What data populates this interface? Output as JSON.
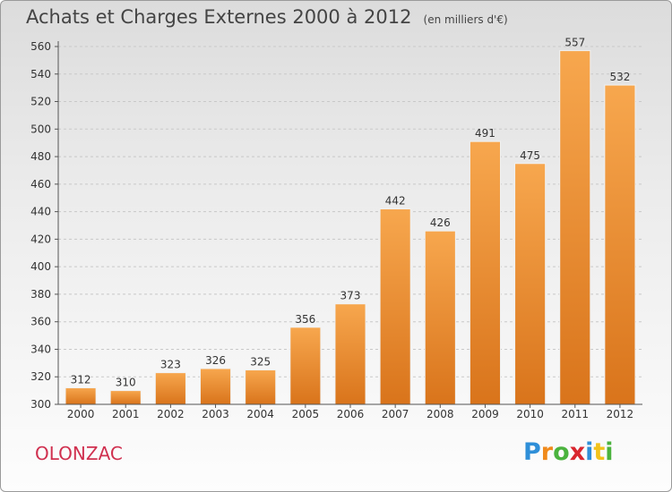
{
  "chart_data": {
    "type": "bar",
    "title": "Achats et Charges Externes 2000 à 2012",
    "subtitle": "(en milliers d'€)",
    "categories": [
      "2000",
      "2001",
      "2002",
      "2003",
      "2004",
      "2005",
      "2006",
      "2007",
      "2008",
      "2009",
      "2010",
      "2011",
      "2012"
    ],
    "values": [
      312,
      310,
      323,
      326,
      325,
      356,
      373,
      442,
      426,
      491,
      475,
      557,
      532
    ],
    "ylim": [
      300,
      560
    ],
    "yticks": [
      300,
      320,
      340,
      360,
      380,
      400,
      420,
      440,
      460,
      480,
      500,
      520,
      540,
      560
    ],
    "grid": "horizontal-dashed",
    "colors": {
      "bar_light": "#f7a74e",
      "bar_dark": "#d9741b",
      "grid": "#c8c8c8"
    }
  },
  "footer": {
    "town": "OLONZAC",
    "town_color": "#d0304f",
    "logo": [
      {
        "char": "P",
        "color": "#2f8fd8"
      },
      {
        "char": "r",
        "color": "#f08a1c"
      },
      {
        "char": "o",
        "color": "#4bb33e"
      },
      {
        "char": "x",
        "color": "#d9262e"
      },
      {
        "char": "i",
        "color": "#2f8fd8"
      },
      {
        "char": "t",
        "color": "#f2c21b"
      },
      {
        "char": "i",
        "color": "#4bb33e"
      }
    ]
  }
}
